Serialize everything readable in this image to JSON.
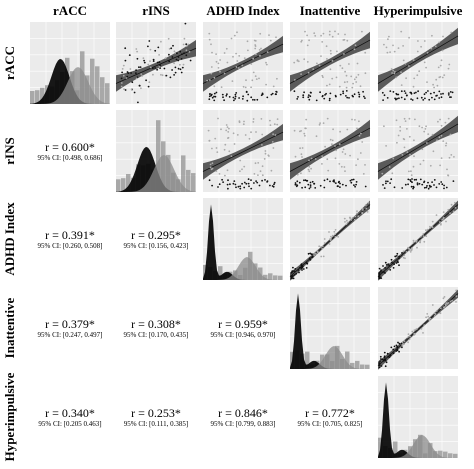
{
  "chart_data": {
    "type": "scatter",
    "title": "",
    "variables": [
      "rACC",
      "rINS",
      "ADHD Index",
      "Inattentive",
      "Hyperimpulsive"
    ],
    "correlations": [
      {
        "row": "rINS",
        "col": "rACC",
        "r": "r = 0.600*",
        "ci": "95% CI: [0.498, 0.686]"
      },
      {
        "row": "ADHD Index",
        "col": "rACC",
        "r": "r = 0.391*",
        "ci": "95% CI: [0.260, 0.508]"
      },
      {
        "row": "ADHD Index",
        "col": "rINS",
        "r": "r = 0.295*",
        "ci": "95% CI: [0.156, 0.423]"
      },
      {
        "row": "Inattentive",
        "col": "rACC",
        "r": "r = 0.379*",
        "ci": "95% CI: [0.247, 0.497]"
      },
      {
        "row": "Inattentive",
        "col": "rINS",
        "r": "r = 0.308*",
        "ci": "95% CI: [0.170, 0.435]"
      },
      {
        "row": "Inattentive",
        "col": "ADHD Index",
        "r": "r = 0.959*",
        "ci": "95% CI: [0.946, 0.970]"
      },
      {
        "row": "Hyperimpulsive",
        "col": "rACC",
        "r": "r = 0.340*",
        "ci": "95% CI: [0.205 0.463]"
      },
      {
        "row": "Hyperimpulsive",
        "col": "rINS",
        "r": "r = 0.253*",
        "ci": "95% CI: [0.111, 0.385]"
      },
      {
        "row": "Hyperimpulsive",
        "col": "ADHD Index",
        "r": "r = 0.846*",
        "ci": "95% CI: [0.799, 0.883]"
      },
      {
        "row": "Hyperimpulsive",
        "col": "Inattentive",
        "r": "r = 0.772*",
        "ci": "95% CI: [0.705, 0.825]"
      }
    ],
    "diagonal": "density-histogram",
    "upper": "scatter-with-regression-band",
    "colors": {
      "panel": "#ebebeb",
      "grid": "#ffffff",
      "band": "#4a4a4a",
      "line": "#111111",
      "points_dark": "#111111",
      "points_light": "#aaaaaa",
      "density_dark": "#000000",
      "density_light": "#8c8c8c"
    }
  }
}
